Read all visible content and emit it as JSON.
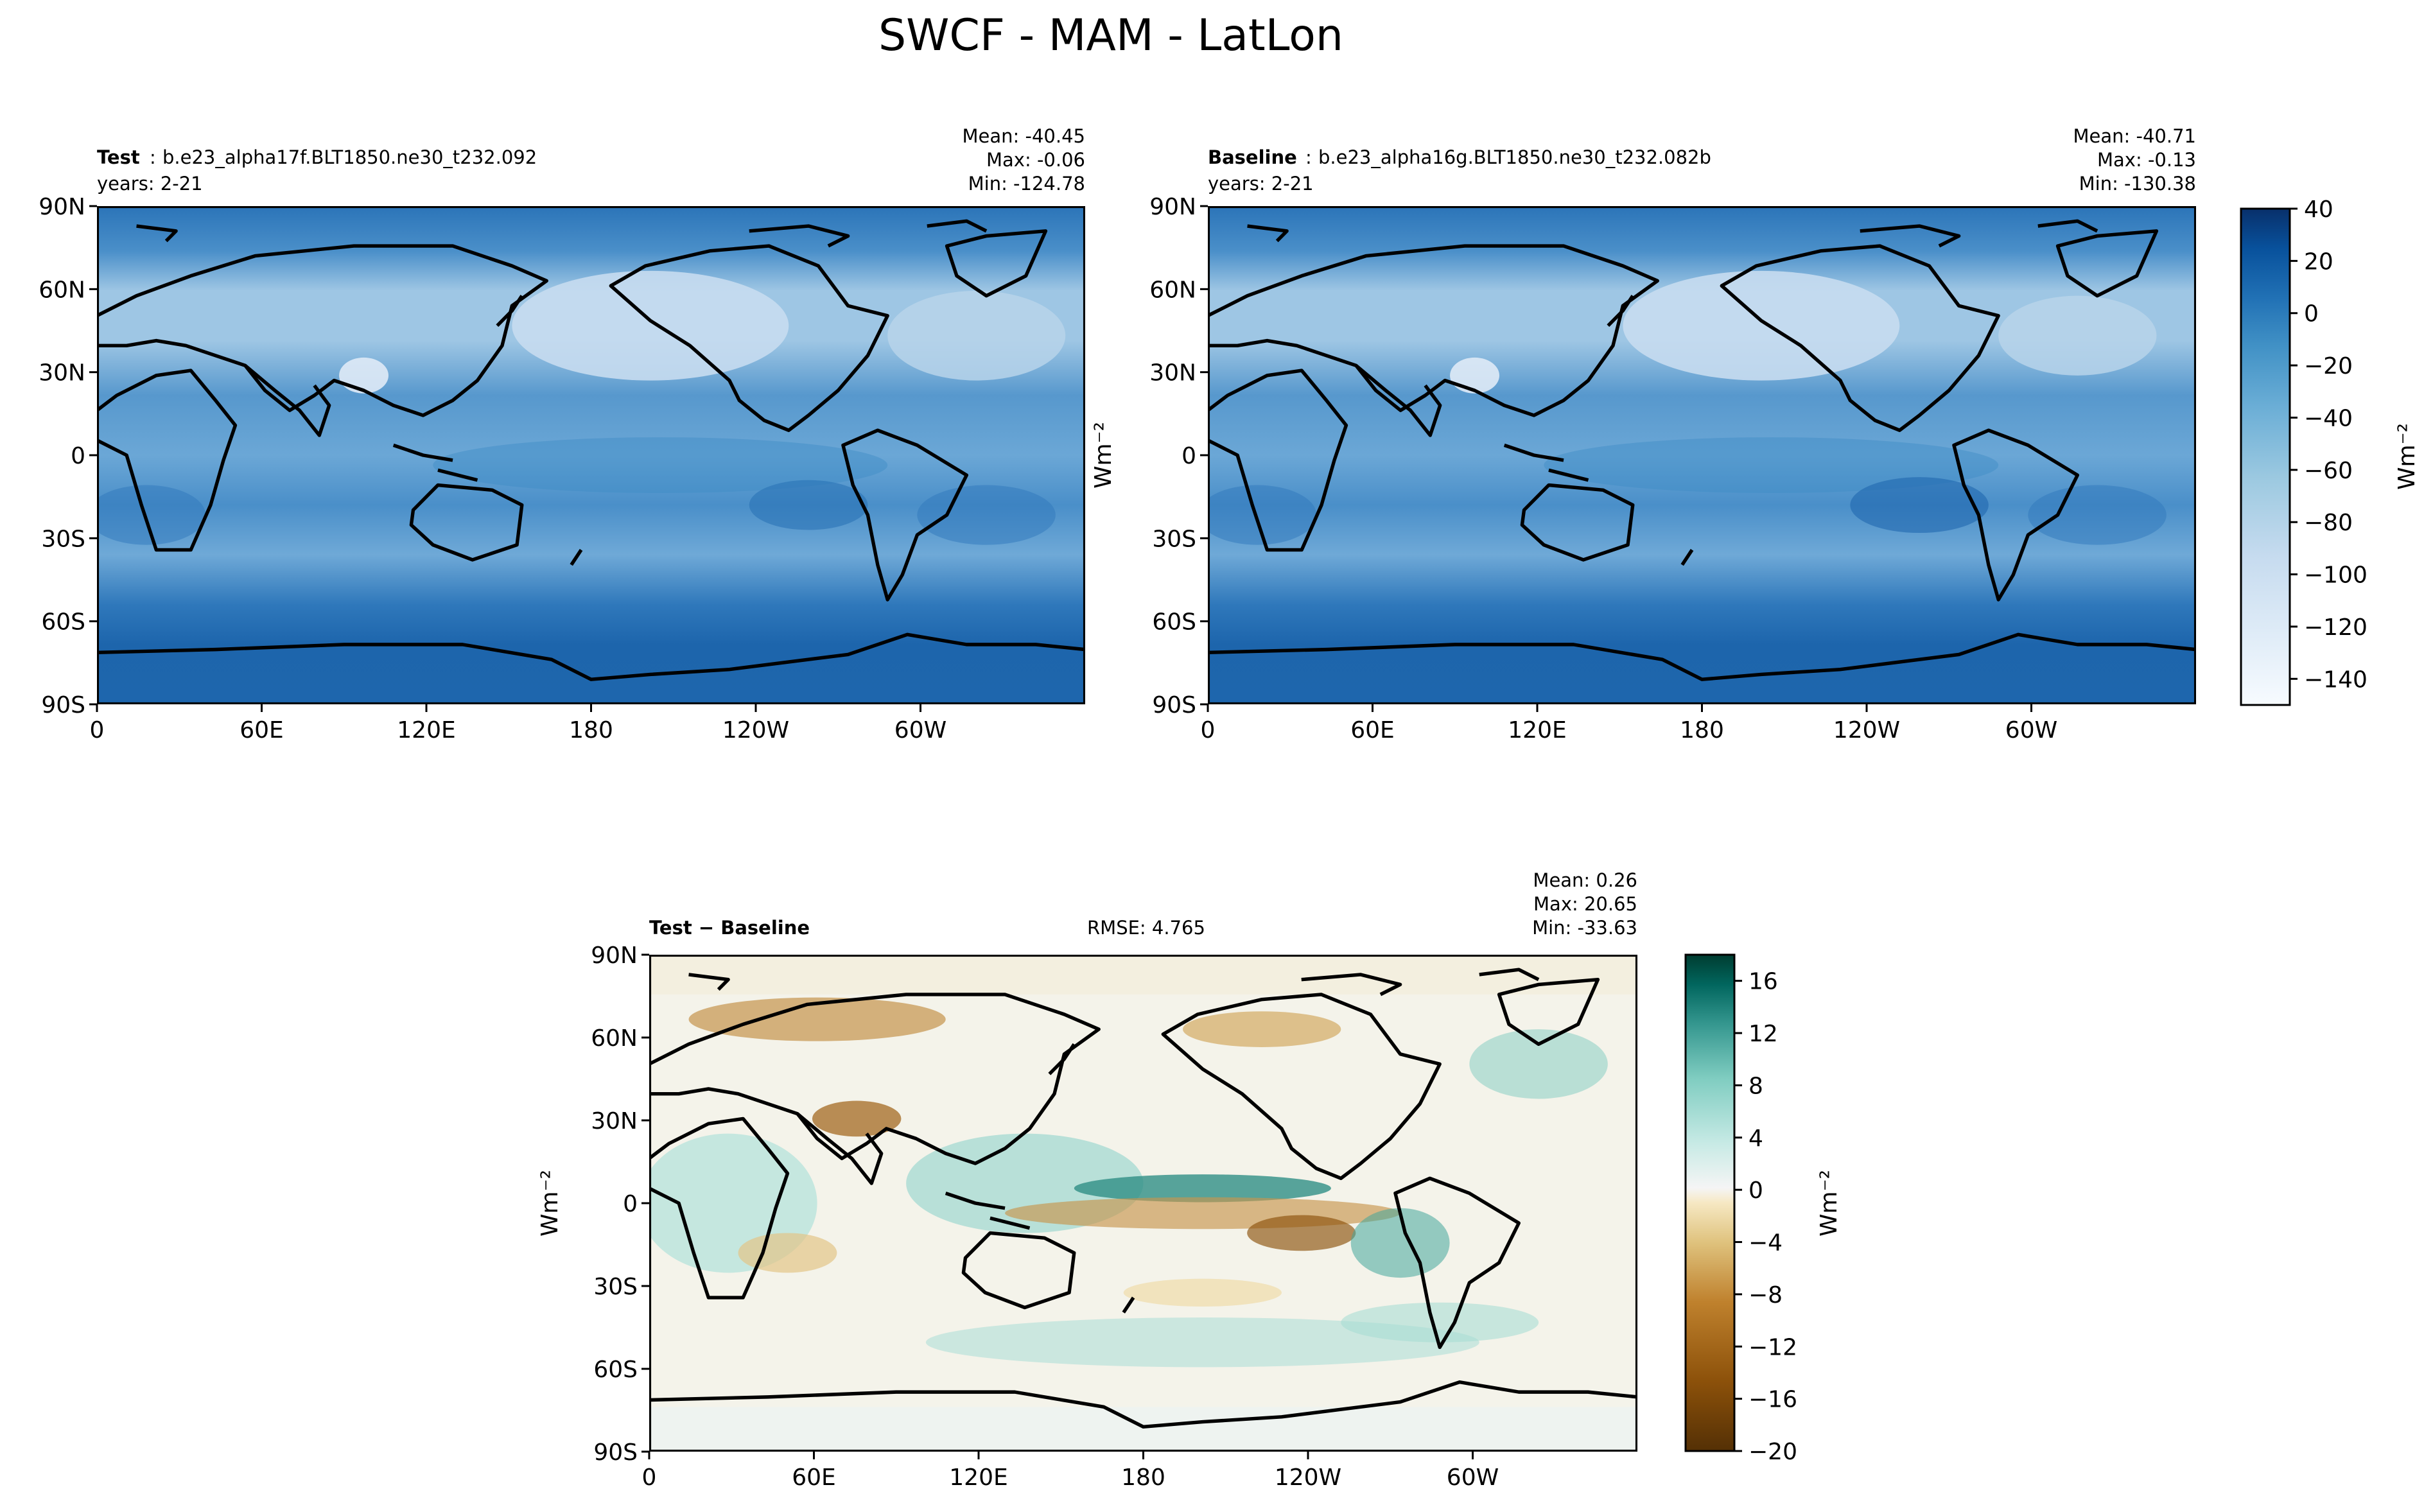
{
  "figure": {
    "title": "SWCF - MAM - LatLon"
  },
  "colors": {
    "mapBlues": [
      "#08306b",
      "#08519c",
      "#2171b5",
      "#4292c6",
      "#6baed6",
      "#9ecae1",
      "#c6dbef",
      "#deebf7",
      "#f7fbff"
    ],
    "diffBrown": [
      "#543005",
      "#8c510a",
      "#bf812d",
      "#dfc27d",
      "#f6e8c3"
    ],
    "diffTeal": [
      "#c7eae5",
      "#80cdc1",
      "#35978f",
      "#01665e",
      "#003c30"
    ],
    "land": "#000000"
  },
  "chart_data": [
    {
      "type": "heatmap",
      "panel": "test",
      "label_bold": "Test",
      "label_sep": ":",
      "case": "b.e23_alpha17f.BLT1850.ne30_t232.092",
      "years": "years: 2-21",
      "stats": {
        "mean": "Mean: -40.45",
        "max": "Max: -0.06",
        "min": "Min: -124.78"
      },
      "xticks": [
        "0",
        "60E",
        "120E",
        "180",
        "120W",
        "60W"
      ],
      "yticks": [
        "90N",
        "60N",
        "30N",
        "0",
        "30S",
        "60S",
        "90S"
      ],
      "xlim": [
        0,
        360
      ],
      "ylim": [
        -90,
        90
      ],
      "ylabel": ""
    },
    {
      "type": "heatmap",
      "panel": "baseline",
      "label_bold": "Baseline",
      "label_sep": ":",
      "case": "b.e23_alpha16g.BLT1850.ne30_t232.082b",
      "years": "years: 2-21",
      "stats": {
        "mean": "Mean: -40.71",
        "max": "Max: -0.13",
        "min": "Min: -130.38"
      },
      "xticks": [
        "0",
        "60E",
        "120E",
        "180",
        "120W",
        "60W"
      ],
      "yticks": [
        "90N",
        "60N",
        "30N",
        "0",
        "30S",
        "60S",
        "90S"
      ],
      "xlim": [
        0,
        360
      ],
      "ylim": [
        -90,
        90
      ],
      "ylabel": "Wm⁻²"
    },
    {
      "type": "heatmap",
      "panel": "difference",
      "label_bold": "Test − Baseline",
      "rmse": "RMSE: 4.765",
      "stats": {
        "mean": "Mean:  0.26",
        "max": "Max: 20.65",
        "min": "Min: -33.63"
      },
      "xticks": [
        "0",
        "60E",
        "120E",
        "180",
        "120W",
        "60W"
      ],
      "yticks": [
        "90N",
        "60N",
        "30N",
        "0",
        "30S",
        "60S",
        "90S"
      ],
      "xlim": [
        0,
        360
      ],
      "ylim": [
        -90,
        90
      ],
      "ylabel": "Wm⁻²"
    }
  ],
  "colorbars": {
    "main": {
      "ticks": [
        "40",
        "20",
        "0",
        "−20",
        "−40",
        "−60",
        "−80",
        "−100",
        "−120",
        "−140"
      ],
      "label": "Wm⁻²",
      "range": [
        -150,
        40
      ]
    },
    "diff": {
      "ticks": [
        "16",
        "12",
        "8",
        "4",
        "0",
        "−4",
        "−8",
        "−12",
        "−16",
        "−20"
      ],
      "label": "Wm⁻²",
      "range": [
        -20,
        18
      ]
    }
  }
}
